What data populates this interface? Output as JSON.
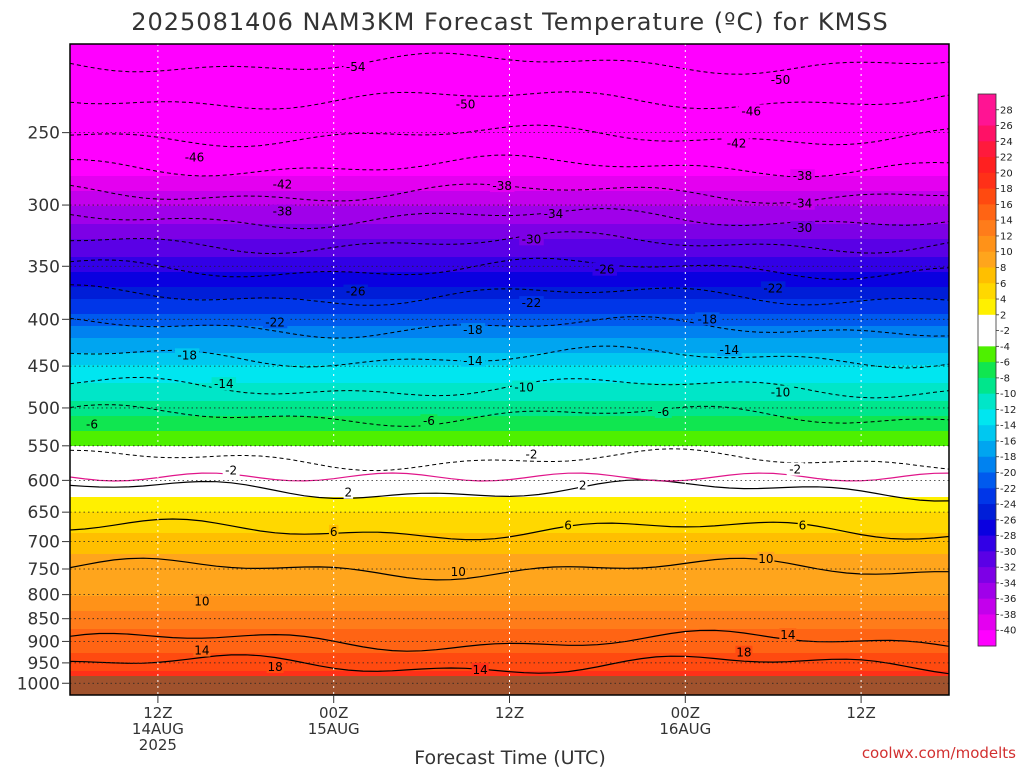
{
  "chart_data": {
    "type": "heatmap",
    "title": "2025081406 NAM3KM Forecast Temperature (ºC) for KMSS",
    "xlabel": "Forecast Time (UTC)",
    "ylabel": "",
    "credit": "coolwx.com/modelts",
    "y_axis": {
      "scale": "log",
      "reversed": true,
      "range": [
        1030,
        200
      ],
      "ticks": [
        "250",
        "300",
        "350",
        "400",
        "450",
        "500",
        "550",
        "600",
        "650",
        "700",
        "750",
        "800",
        "850",
        "900",
        "950",
        "1000"
      ]
    },
    "x_axis": {
      "range_hours": [
        0,
        60
      ],
      "ticks": [
        {
          "hour": 6,
          "lines": [
            "12Z",
            "14AUG",
            "2025"
          ]
        },
        {
          "hour": 18,
          "lines": [
            "00Z",
            "15AUG"
          ]
        },
        {
          "hour": 30,
          "lines": [
            "12Z"
          ]
        },
        {
          "hour": 42,
          "lines": [
            "00Z",
            "16AUG"
          ]
        },
        {
          "hour": 54,
          "lines": [
            "12Z"
          ]
        }
      ]
    },
    "grid": true,
    "colorbar": {
      "labels": [
        "28",
        "26",
        "24",
        "22",
        "20",
        "18",
        "16",
        "14",
        "12",
        "10",
        "8",
        "6",
        "4",
        "2",
        "-2",
        "-4",
        "-6",
        "-8",
        "-10",
        "-12",
        "-14",
        "-16",
        "-18",
        "-20",
        "-22",
        "-24",
        "-26",
        "-28",
        "-30",
        "-32",
        "-34",
        "-36",
        "-38",
        "-40"
      ]
    },
    "temperature_profile": [
      {
        "p": 1000,
        "t": 21
      },
      {
        "p": 950,
        "t": 18
      },
      {
        "p": 900,
        "t": 16
      },
      {
        "p": 850,
        "t": 14
      },
      {
        "p": 800,
        "t": 11
      },
      {
        "p": 750,
        "t": 10
      },
      {
        "p": 700,
        "t": 8
      },
      {
        "p": 650,
        "t": 5
      },
      {
        "p": 600,
        "t": 1
      },
      {
        "p": 550,
        "t": -3
      },
      {
        "p": 500,
        "t": -8
      },
      {
        "p": 450,
        "t": -13
      },
      {
        "p": 400,
        "t": -20
      },
      {
        "p": 350,
        "t": -28
      },
      {
        "p": 300,
        "t": -35
      },
      {
        "p": 250,
        "t": -45
      },
      {
        "p": 200,
        "t": -55
      }
    ],
    "contour_labels": [
      {
        "text": "-54",
        "hour": 19.5,
        "p": 212
      },
      {
        "text": "-50",
        "hour": 27,
        "p": 233
      },
      {
        "text": "-50",
        "hour": 48.5,
        "p": 219
      },
      {
        "text": "-46",
        "hour": 8.5,
        "p": 266
      },
      {
        "text": "-46",
        "hour": 46.5,
        "p": 237
      },
      {
        "text": "-42",
        "hour": 14.5,
        "p": 285
      },
      {
        "text": "-42",
        "hour": 45.5,
        "p": 257
      },
      {
        "text": "-38",
        "hour": 14.5,
        "p": 305
      },
      {
        "text": "-38",
        "hour": 29.5,
        "p": 286
      },
      {
        "text": "-38",
        "hour": 50,
        "p": 279
      },
      {
        "text": "-34",
        "hour": 33,
        "p": 307
      },
      {
        "text": "-34",
        "hour": 50,
        "p": 299
      },
      {
        "text": "-30",
        "hour": 31.5,
        "p": 327
      },
      {
        "text": "-30",
        "hour": 50,
        "p": 318
      },
      {
        "text": "-26",
        "hour": 19.5,
        "p": 373
      },
      {
        "text": "-26",
        "hour": 36.5,
        "p": 353
      },
      {
        "text": "-22",
        "hour": 14,
        "p": 403
      },
      {
        "text": "-22",
        "hour": 31.5,
        "p": 384
      },
      {
        "text": "-22",
        "hour": 48,
        "p": 370
      },
      {
        "text": "-18",
        "hour": 8,
        "p": 438
      },
      {
        "text": "-18",
        "hour": 27.5,
        "p": 411
      },
      {
        "text": "-18",
        "hour": 43.5,
        "p": 400
      },
      {
        "text": "-14",
        "hour": 10.5,
        "p": 471
      },
      {
        "text": "-14",
        "hour": 27.5,
        "p": 444
      },
      {
        "text": "-14",
        "hour": 45,
        "p": 432
      },
      {
        "text": "-10",
        "hour": 31,
        "p": 475
      },
      {
        "text": "-10",
        "hour": 48.5,
        "p": 481
      },
      {
        "text": "-6",
        "hour": 1.5,
        "p": 521
      },
      {
        "text": "-6",
        "hour": 24.5,
        "p": 517
      },
      {
        "text": "-6",
        "hour": 40.5,
        "p": 505
      },
      {
        "text": "-2",
        "hour": 11,
        "p": 585
      },
      {
        "text": "-2",
        "hour": 31.5,
        "p": 562
      },
      {
        "text": "-2",
        "hour": 49.5,
        "p": 584
      },
      {
        "text": "2",
        "hour": 19,
        "p": 619
      },
      {
        "text": "2",
        "hour": 35,
        "p": 608
      },
      {
        "text": "6",
        "hour": 18,
        "p": 683
      },
      {
        "text": "6",
        "hour": 34,
        "p": 672
      },
      {
        "text": "6",
        "hour": 50,
        "p": 672
      },
      {
        "text": "10",
        "hour": 26.5,
        "p": 756
      },
      {
        "text": "10",
        "hour": 47.5,
        "p": 731
      },
      {
        "text": "10",
        "hour": 9,
        "p": 814
      },
      {
        "text": "14",
        "hour": 9,
        "p": 921
      },
      {
        "text": "14",
        "hour": 28,
        "p": 967
      },
      {
        "text": "14",
        "hour": 49,
        "p": 886
      },
      {
        "text": "18",
        "hour": 14,
        "p": 960
      },
      {
        "text": "18",
        "hour": 46,
        "p": 926
      }
    ],
    "contour_lines": [
      {
        "t": -54,
        "p": 210
      },
      {
        "t": -50,
        "p": 230
      },
      {
        "t": -46,
        "p": 252
      },
      {
        "t": -42,
        "p": 272
      },
      {
        "t": -38,
        "p": 291
      },
      {
        "t": -34,
        "p": 310
      },
      {
        "t": -30,
        "p": 330
      },
      {
        "t": -26,
        "p": 352
      },
      {
        "t": -22,
        "p": 377
      },
      {
        "t": -18,
        "p": 408
      },
      {
        "t": -14,
        "p": 440
      },
      {
        "t": -10,
        "p": 475
      },
      {
        "t": -6,
        "p": 510
      },
      {
        "t": -2,
        "p": 570
      },
      {
        "t": 2,
        "p": 615
      },
      {
        "t": 6,
        "p": 680
      },
      {
        "t": 10,
        "p": 750
      },
      {
        "t": 14,
        "p": 900
      },
      {
        "t": 18,
        "p": 955
      }
    ]
  }
}
